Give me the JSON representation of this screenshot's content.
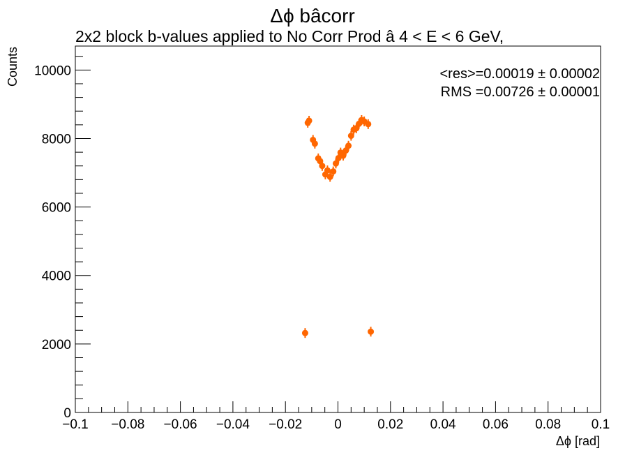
{
  "chart_data": {
    "type": "scatter",
    "title": "Δϕ bâcorr",
    "subtitle": "2x2 block b-values applied to No Corr Prod   â   4 < E < 6 GeV,",
    "xlabel": "Δϕ  [rad]",
    "ylabel": "Counts",
    "xlim": [
      -0.1,
      0.1
    ],
    "ylim": [
      0,
      10700
    ],
    "x_ticks": [
      -0.1,
      -0.08,
      -0.06,
      -0.04,
      -0.02,
      0,
      0.02,
      0.04,
      0.06,
      0.08,
      0.1
    ],
    "x_tick_labels": [
      "−0.1",
      "−0.08",
      "−0.06",
      "−0.04",
      "−0.02",
      "0",
      "0.02",
      "0.04",
      "0.06",
      "0.08",
      "0.1"
    ],
    "y_ticks": [
      0,
      2000,
      4000,
      6000,
      8000,
      10000
    ],
    "y_tick_labels": [
      "0",
      "2000",
      "4000",
      "6000",
      "8000",
      "10000"
    ],
    "grid": false,
    "marker_color": "#ff6600",
    "stats": {
      "mean_line": "<res>=0.00019 ± 0.00002",
      "rms_line": "RMS =0.00726 ± 0.00001"
    },
    "series": [
      {
        "points": [
          {
            "x": -0.0125,
            "y": 2320
          },
          {
            "x": -0.0115,
            "y": 8460
          },
          {
            "x": -0.011,
            "y": 8520
          },
          {
            "x": -0.0095,
            "y": 7960
          },
          {
            "x": -0.0088,
            "y": 7850
          },
          {
            "x": -0.0075,
            "y": 7420
          },
          {
            "x": -0.0068,
            "y": 7340
          },
          {
            "x": -0.006,
            "y": 7200
          },
          {
            "x": -0.0048,
            "y": 6950
          },
          {
            "x": -0.004,
            "y": 7070
          },
          {
            "x": -0.003,
            "y": 6880
          },
          {
            "x": -0.0018,
            "y": 7040
          },
          {
            "x": -0.0008,
            "y": 7270
          },
          {
            "x": 0.0002,
            "y": 7430
          },
          {
            "x": 0.001,
            "y": 7590
          },
          {
            "x": 0.002,
            "y": 7500
          },
          {
            "x": 0.003,
            "y": 7650
          },
          {
            "x": 0.004,
            "y": 7790
          },
          {
            "x": 0.005,
            "y": 8080
          },
          {
            "x": 0.006,
            "y": 8260
          },
          {
            "x": 0.007,
            "y": 8300
          },
          {
            "x": 0.008,
            "y": 8430
          },
          {
            "x": 0.009,
            "y": 8540
          },
          {
            "x": 0.01,
            "y": 8500
          },
          {
            "x": 0.0115,
            "y": 8420
          },
          {
            "x": 0.0125,
            "y": 2360
          }
        ]
      }
    ]
  }
}
